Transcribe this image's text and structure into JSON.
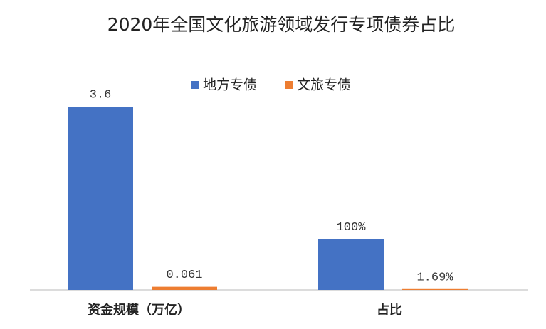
{
  "chart_data": {
    "type": "bar",
    "title": "2020年全国文化旅游领域发行专项债券占比",
    "categories": [
      "资金规模（万亿）",
      "占比"
    ],
    "series": [
      {
        "name": "地方专债",
        "color": "#4472c4",
        "values": [
          3.6,
          1
        ],
        "value_labels": [
          "3.6",
          "100%"
        ]
      },
      {
        "name": "文旅专债",
        "color": "#ed7d31",
        "values": [
          0.061,
          0.0169
        ],
        "value_labels": [
          "0.061",
          "1.69%"
        ]
      }
    ],
    "legend": "top"
  }
}
